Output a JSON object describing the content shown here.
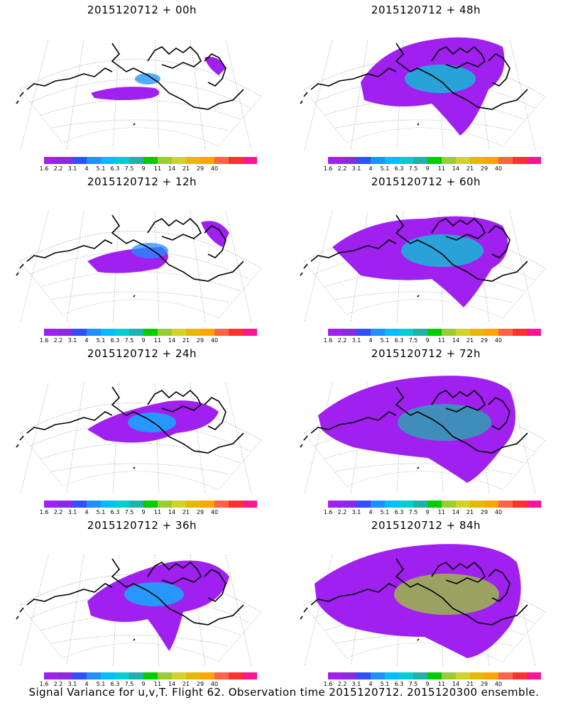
{
  "panels": [
    {
      "title": "2015120712 + 00h",
      "level": 0
    },
    {
      "title": "2015120712 + 48h",
      "level": 4
    },
    {
      "title": "2015120712 + 12h",
      "level": 1
    },
    {
      "title": "2015120712 + 60h",
      "level": 5
    },
    {
      "title": "2015120712 + 24h",
      "level": 2
    },
    {
      "title": "2015120712 + 72h",
      "level": 6
    },
    {
      "title": "2015120712 + 36h",
      "level": 3
    },
    {
      "title": "2015120712 + 84h",
      "level": 7
    }
  ],
  "colorbar": {
    "labels": [
      "1.6",
      "2.2",
      "3.1",
      "4",
      "5.1",
      "6.3",
      "7.5",
      "9",
      "11",
      "14",
      "21",
      "29",
      "40"
    ],
    "colors": [
      "#a020f0",
      "#8a2be2",
      "#3050ff",
      "#1e90ff",
      "#00bfff",
      "#00ced1",
      "#20b2aa",
      "#00cd00",
      "#9acd32",
      "#d2d22a",
      "#e6b800",
      "#ffa500",
      "#ff6347",
      "#ff3030",
      "#ff1493"
    ]
  },
  "footer": "Signal Variance for u,v,T. Flight 62. Observation time 2015120712. 2015120300 ensemble."
}
